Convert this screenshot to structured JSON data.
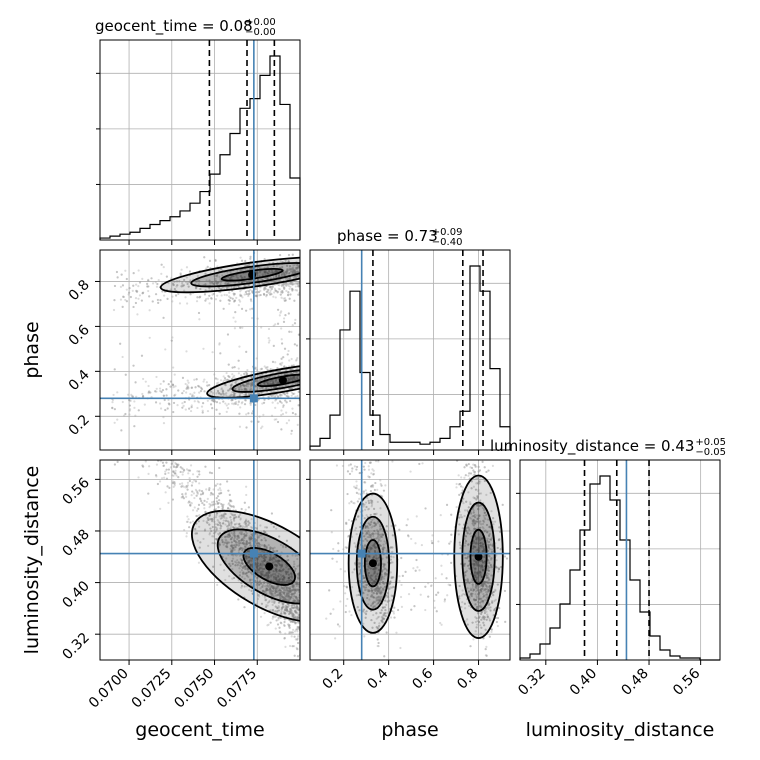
{
  "chart_data": {
    "type": "corner",
    "parameters": [
      "geocent_time",
      "phase",
      "luminosity_distance"
    ],
    "truths": {
      "geocent_time": 0.0773,
      "phase": 0.28,
      "luminosity_distance": 0.445
    },
    "colors": {
      "truth": "#4682b4",
      "hist": "#000000",
      "points": "#9a9a9a",
      "contour_fill": "#000000"
    },
    "titles": {
      "geocent_time": {
        "label": "geocent_time = 0.08",
        "upper": "+0.00",
        "lower": "−0.00"
      },
      "phase": {
        "label": "phase = 0.73",
        "upper": "+0.09",
        "lower": "−0.40"
      },
      "luminosity_distance": {
        "label": "luminosity_distance = 0.43",
        "upper": "+0.05",
        "lower": "−0.05"
      }
    },
    "axis_labels": {
      "geocent_time": "geocent_time",
      "phase": "phase",
      "luminosity_distance": "luminosity_distance"
    },
    "ranges": {
      "geocent_time": [
        0.0683,
        0.08
      ],
      "phase": [
        0.05,
        0.94
      ],
      "luminosity_distance": [
        0.28,
        0.59
      ]
    },
    "ticks": {
      "geocent_time": {
        "values": [
          0.07,
          0.0725,
          0.075,
          0.0775
        ],
        "labels": [
          "0.0700",
          "0.0725",
          "0.0750",
          "0.0775"
        ]
      },
      "phase": {
        "values": [
          0.2,
          0.4,
          0.6,
          0.8
        ],
        "labels": [
          "0.2",
          "0.4",
          "0.6",
          "0.8"
        ]
      },
      "luminosity_distance": {
        "values": [
          0.32,
          0.4,
          0.48,
          0.56
        ],
        "labels": [
          "0.32",
          "0.40",
          "0.48",
          "0.56"
        ]
      }
    },
    "quantiles": {
      "geocent_time": [
        0.0747,
        0.0769,
        0.0785
      ],
      "phase": [
        0.33,
        0.73,
        0.82
      ],
      "luminosity_distance": [
        0.38,
        0.43,
        0.48
      ]
    },
    "histograms": {
      "geocent_time": {
        "bins": 20,
        "counts": [
          1,
          2,
          3,
          4,
          6,
          8,
          10,
          12,
          15,
          19,
          25,
          34,
          44,
          55,
          68,
          73,
          85,
          95,
          70,
          32
        ]
      },
      "phase": {
        "bins": 20,
        "counts": [
          2,
          6,
          18,
          62,
          82,
          40,
          18,
          8,
          4,
          4,
          4,
          3,
          4,
          6,
          12,
          20,
          95,
          82,
          42,
          12
        ]
      },
      "luminosity_distance": {
        "bins": 20,
        "counts": [
          1,
          3,
          8,
          16,
          28,
          45,
          65,
          88,
          92,
          80,
          60,
          40,
          24,
          12,
          5,
          2,
          1,
          1,
          0,
          0
        ]
      }
    },
    "grid": true,
    "legend": "none"
  }
}
